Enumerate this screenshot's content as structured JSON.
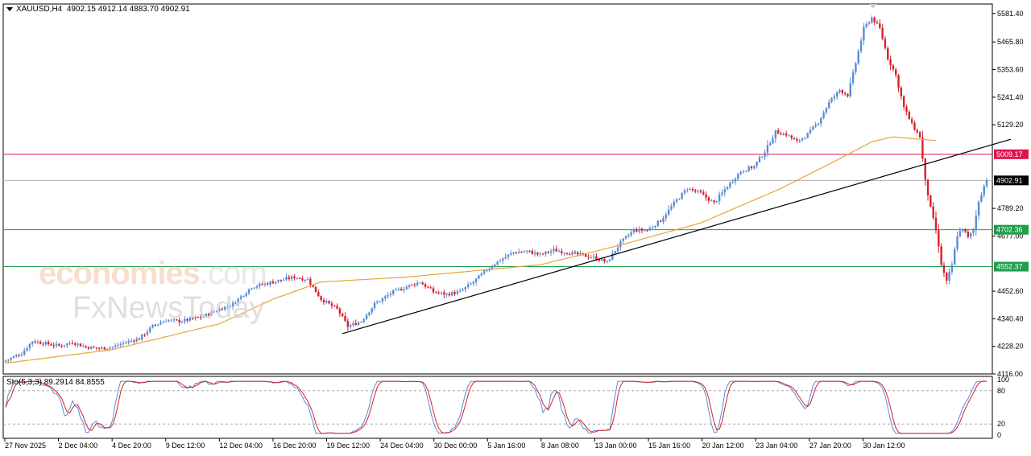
{
  "header": {
    "symbol": "XAUUSD,H4",
    "ohlc": "4902.15 4912.14 4883.70 4902.91"
  },
  "watermark": {
    "brand_main": "economies",
    "brand_suffix": ".com",
    "brand_secondary": "FxNewsToday"
  },
  "oscillator": {
    "label": "Sto(5,3,3) 89.2914 84.8555",
    "axis_ticks": [
      "100",
      "80",
      "20",
      "0"
    ],
    "levels": [
      80,
      20
    ]
  },
  "price_lines": {
    "resistance": {
      "value": 5009.17,
      "label": "5009.17",
      "color": "#e0144c"
    },
    "current": {
      "value": 4902.91,
      "label": "4902.91",
      "color": "#000000"
    },
    "support1": {
      "value": 4702.36,
      "label": "4702.36",
      "color": "#1f9d4c"
    },
    "support2": {
      "value": 4552.37,
      "label": "4552.37",
      "color": "#1f9d4c"
    }
  },
  "colors": {
    "bull": "#5b8bd6",
    "bear": "#d8202a",
    "ma": "#e8a33c",
    "sto_main": "#5b8bd6",
    "sto_signal": "#d8202a",
    "trendline": "#000000"
  },
  "chart_data": {
    "type": "candlestick",
    "timeframe": "H4",
    "ylim": [
      4116,
      5620
    ],
    "y_ticks": [
      "5581.40",
      "5465.80",
      "5353.60",
      "5241.40",
      "5129.20",
      "4789.20",
      "4677.00",
      "4452.60",
      "4340.40",
      "4228.20",
      "4116.00"
    ],
    "x_ticks": [
      "27 Nov 2025",
      "2 Dec 04:00",
      "4 Dec 20:00",
      "9 Dec 12:00",
      "12 Dec 04:00",
      "16 Dec 20:00",
      "19 Dec 12:00",
      "24 Dec 04:00",
      "30 Dec 00:00",
      "5 Jan 16:00",
      "8 Jan 08:00",
      "13 Jan 00:00",
      "15 Jan 16:00",
      "20 Jan 12:00",
      "23 Jan 04:00",
      "27 Jan 20:00",
      "30 Jan 12:00"
    ],
    "anchors": [
      [
        0,
        4170
      ],
      [
        6,
        4200
      ],
      [
        10,
        4250
      ],
      [
        15,
        4240
      ],
      [
        20,
        4230
      ],
      [
        25,
        4245
      ],
      [
        30,
        4225
      ],
      [
        35,
        4220
      ],
      [
        40,
        4225
      ],
      [
        45,
        4245
      ],
      [
        50,
        4260
      ],
      [
        55,
        4310
      ],
      [
        60,
        4335
      ],
      [
        65,
        4330
      ],
      [
        70,
        4340
      ],
      [
        75,
        4355
      ],
      [
        80,
        4380
      ],
      [
        85,
        4400
      ],
      [
        92,
        4470
      ],
      [
        100,
        4490
      ],
      [
        108,
        4510
      ],
      [
        113,
        4500
      ],
      [
        118,
        4420
      ],
      [
        124,
        4380
      ],
      [
        128,
        4310
      ],
      [
        133,
        4330
      ],
      [
        138,
        4400
      ],
      [
        145,
        4450
      ],
      [
        150,
        4470
      ],
      [
        155,
        4490
      ],
      [
        160,
        4450
      ],
      [
        165,
        4440
      ],
      [
        170,
        4450
      ],
      [
        175,
        4490
      ],
      [
        180,
        4540
      ],
      [
        185,
        4580
      ],
      [
        190,
        4610
      ],
      [
        195,
        4615
      ],
      [
        200,
        4600
      ],
      [
        205,
        4620
      ],
      [
        210,
        4610
      ],
      [
        215,
        4600
      ],
      [
        220,
        4590
      ],
      [
        225,
        4570
      ],
      [
        230,
        4650
      ],
      [
        235,
        4700
      ],
      [
        240,
        4700
      ],
      [
        245,
        4740
      ],
      [
        250,
        4810
      ],
      [
        255,
        4870
      ],
      [
        260,
        4850
      ],
      [
        265,
        4810
      ],
      [
        270,
        4880
      ],
      [
        275,
        4940
      ],
      [
        280,
        4960
      ],
      [
        284,
        5020
      ],
      [
        288,
        5100
      ],
      [
        292,
        5090
      ],
      [
        296,
        5060
      ],
      [
        300,
        5090
      ],
      [
        304,
        5140
      ],
      [
        308,
        5220
      ],
      [
        312,
        5270
      ],
      [
        315,
        5250
      ],
      [
        318,
        5380
      ],
      [
        321,
        5520
      ],
      [
        324,
        5565
      ],
      [
        327,
        5520
      ],
      [
        330,
        5400
      ],
      [
        333,
        5330
      ],
      [
        336,
        5200
      ],
      [
        339,
        5130
      ],
      [
        342,
        5080
      ],
      [
        344,
        4900
      ],
      [
        346,
        4790
      ],
      [
        348,
        4700
      ],
      [
        350,
        4560
      ],
      [
        352,
        4490
      ],
      [
        354,
        4560
      ],
      [
        356,
        4680
      ],
      [
        358,
        4710
      ],
      [
        360,
        4670
      ],
      [
        362,
        4700
      ],
      [
        364,
        4820
      ],
      [
        366,
        4880
      ],
      [
        368,
        4902.91
      ]
    ],
    "ma_anchors": [
      [
        0,
        4160
      ],
      [
        40,
        4215
      ],
      [
        80,
        4320
      ],
      [
        100,
        4420
      ],
      [
        118,
        4490
      ],
      [
        150,
        4510
      ],
      [
        200,
        4560
      ],
      [
        230,
        4640
      ],
      [
        260,
        4730
      ],
      [
        290,
        4870
      ],
      [
        310,
        4980
      ],
      [
        324,
        5060
      ],
      [
        332,
        5080
      ],
      [
        340,
        5072
      ],
      [
        348,
        5065
      ]
    ],
    "trendline": {
      "from": [
        126,
        4280
      ],
      "to": [
        376,
        5070
      ]
    },
    "stochastic": {
      "main_label": "89.2914",
      "signal_label": "84.8555",
      "min": 0,
      "max": 100
    }
  }
}
